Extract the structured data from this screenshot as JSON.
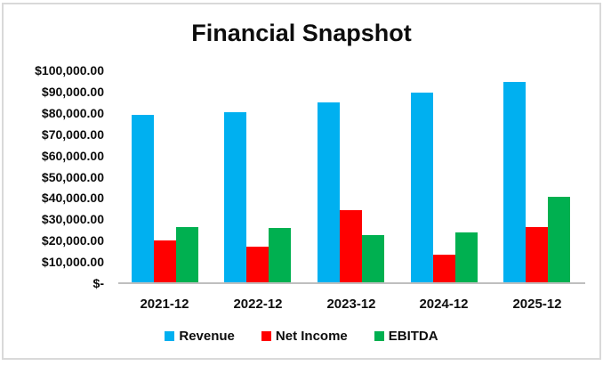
{
  "title": "Financial Snapshot",
  "chart_data": {
    "type": "bar",
    "title": "Financial Snapshot",
    "categories": [
      "2021-12",
      "2022-12",
      "2023-12",
      "2024-12",
      "2025-12"
    ],
    "series": [
      {
        "name": "Revenue",
        "color": "#00B0F0",
        "values": [
          79000,
          80500,
          85000,
          89500,
          94500
        ]
      },
      {
        "name": "Net Income",
        "color": "#FF0000",
        "values": [
          20000,
          17000,
          34500,
          13500,
          26500
        ]
      },
      {
        "name": "EBITDA",
        "color": "#00B050",
        "values": [
          26500,
          26000,
          22500,
          24000,
          40500
        ]
      }
    ],
    "ylabel": "",
    "xlabel": "",
    "ylim": [
      0,
      100000
    ],
    "y_tick_step": 10000,
    "y_tick_labels": [
      "$100,000.00",
      "$90,000.00",
      "$80,000.00",
      "$70,000.00",
      "$60,000.00",
      "$50,000.00",
      "$40,000.00",
      "$30,000.00",
      "$20,000.00",
      "$10,000.00",
      "$-"
    ],
    "grid": false,
    "legend_position": "bottom",
    "axis_line_color": "#BFBFBF",
    "frame_border_color": "#D9D9D9",
    "text_color": "#0d0d0d"
  }
}
